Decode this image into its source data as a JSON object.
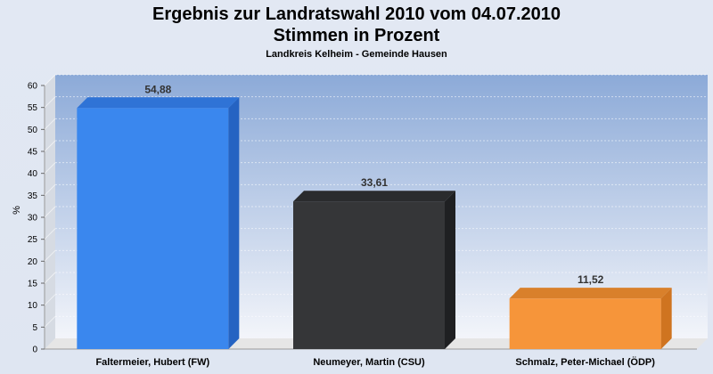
{
  "chart_data": {
    "type": "bar",
    "title": "Ergebnis zur Landratswahl 2010 vom 04.07.2010",
    "title_line2": "Stimmen in Prozent",
    "subtitle": "Landkreis Kelheim - Gemeinde Hausen",
    "ylabel": "%",
    "xlabel": "",
    "ylim": [
      0,
      60
    ],
    "ytick_step": 5,
    "grid": true,
    "categories": [
      "Faltermeier, Hubert (FW)",
      "Neumeyer, Martin (CSU)",
      "Schmalz, Peter-Michael (ÖDP)"
    ],
    "values": [
      54.88,
      33.61,
      11.52
    ],
    "value_labels": [
      "54,88",
      "33,61",
      "11,52"
    ],
    "bar_colors": [
      "#3a87ee",
      "#353638",
      "#f6953a"
    ],
    "bar_side_colors": [
      "#2563c2",
      "#1f2022",
      "#cf7420"
    ],
    "bar_top_colors": [
      "#2f73d6",
      "#2a2b2d",
      "#d9802b"
    ]
  }
}
